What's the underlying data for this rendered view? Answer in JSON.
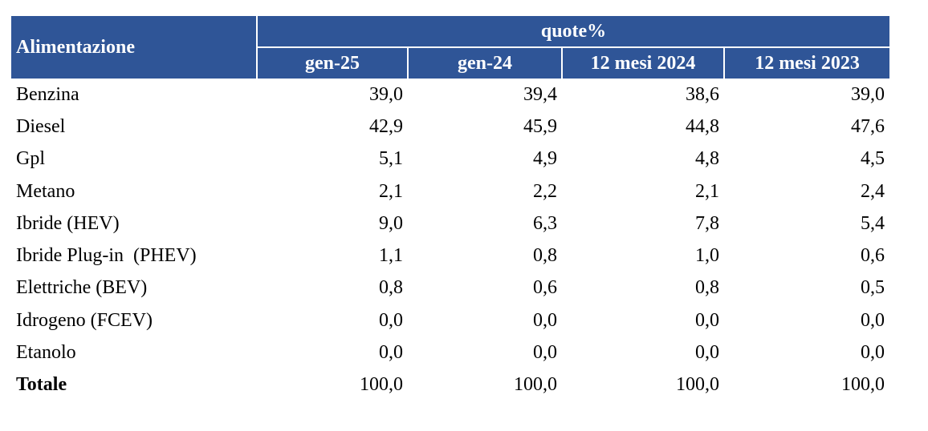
{
  "table": {
    "header": {
      "row_label": "Alimentazione",
      "group": "quote%",
      "columns": [
        "gen-25",
        "gen-24",
        "12 mesi 2024",
        "12 mesi 2023"
      ]
    },
    "rows": [
      {
        "label": "Benzina",
        "values": [
          "39,0",
          "39,4",
          "38,6",
          "39,0"
        ]
      },
      {
        "label": "Diesel",
        "values": [
          "42,9",
          "45,9",
          "44,8",
          "47,6"
        ]
      },
      {
        "label": "Gpl",
        "values": [
          "5,1",
          "4,9",
          "4,8",
          "4,5"
        ]
      },
      {
        "label": "Metano",
        "values": [
          "2,1",
          "2,2",
          "2,1",
          "2,4"
        ]
      },
      {
        "label": "Ibride (HEV)",
        "values": [
          "9,0",
          "6,3",
          "7,8",
          "5,4"
        ]
      },
      {
        "label": "Ibride Plug-in  (PHEV)",
        "values": [
          "1,1",
          "0,8",
          "1,0",
          "0,6"
        ]
      },
      {
        "label": "Elettriche (BEV)",
        "values": [
          "0,8",
          "0,6",
          "0,8",
          "0,5"
        ]
      },
      {
        "label": "Idrogeno (FCEV)",
        "values": [
          "0,0",
          "0,0",
          "0,0",
          "0,0"
        ]
      },
      {
        "label": "Etanolo",
        "values": [
          "0,0",
          "0,0",
          "0,0",
          "0,0"
        ]
      },
      {
        "label": "Totale",
        "values": [
          "100,0",
          "100,0",
          "100,0",
          "100,0"
        ]
      }
    ]
  }
}
